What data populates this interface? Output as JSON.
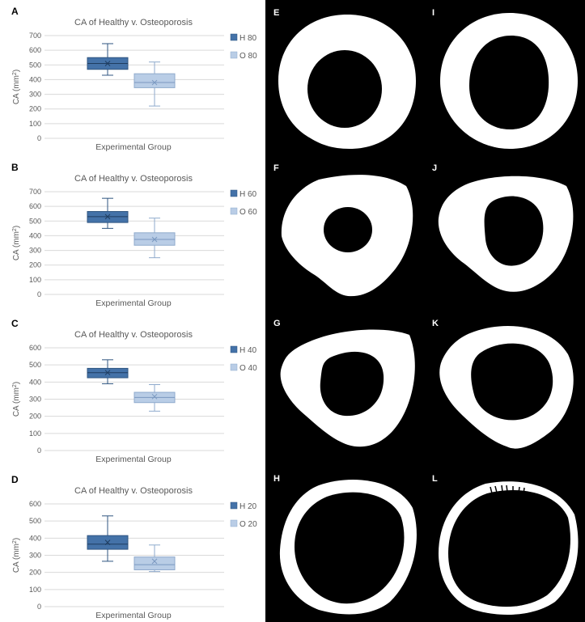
{
  "chart_data": [
    {
      "type": "box",
      "panel_letter": "A",
      "title": "CA of Healthy v. Osteoporosis",
      "xlabel": "Experimental Group",
      "ylabel_main": "CA (mm",
      "ylabel_sup": "2",
      "ylabel_end": ")",
      "ylim": [
        0,
        700
      ],
      "yticks": [
        0,
        100,
        200,
        300,
        400,
        500,
        600,
        700
      ],
      "grid": true,
      "legend_position": "right",
      "series": [
        {
          "name": "H 80",
          "color": "#4472a8",
          "whisker_low": 430,
          "q1": 470,
          "median": 510,
          "mean": 510,
          "q3": 550,
          "whisker_high": 645
        },
        {
          "name": "O 80",
          "color": "#b9cde6",
          "whisker_low": 220,
          "q1": 345,
          "median": 380,
          "mean": 380,
          "q3": 440,
          "whisker_high": 520
        }
      ]
    },
    {
      "type": "box",
      "panel_letter": "B",
      "title": "CA of Healthy v. Osteoporosis",
      "xlabel": "Experimental Group",
      "ylabel_main": "CA (mm",
      "ylabel_sup": "2",
      "ylabel_end": ")",
      "ylim": [
        0,
        700
      ],
      "yticks": [
        0,
        100,
        200,
        300,
        400,
        500,
        600,
        700
      ],
      "grid": true,
      "legend_position": "right",
      "series": [
        {
          "name": "H 60",
          "color": "#4472a8",
          "whisker_low": 450,
          "q1": 490,
          "median": 530,
          "mean": 530,
          "q3": 565,
          "whisker_high": 655
        },
        {
          "name": "O 60",
          "color": "#b9cde6",
          "whisker_low": 250,
          "q1": 335,
          "median": 375,
          "mean": 375,
          "q3": 420,
          "whisker_high": 520
        }
      ]
    },
    {
      "type": "box",
      "panel_letter": "C",
      "title": "CA of Healthy v. Osteoporosis",
      "xlabel": "Experimental Group",
      "ylabel_main": "CA (mm",
      "ylabel_sup": "2",
      "ylabel_end": ")",
      "ylim": [
        0,
        600
      ],
      "yticks": [
        0,
        100,
        200,
        300,
        400,
        500,
        600
      ],
      "grid": true,
      "legend_position": "right",
      "series": [
        {
          "name": "H 40",
          "color": "#4472a8",
          "whisker_low": 390,
          "q1": 425,
          "median": 455,
          "mean": 455,
          "q3": 480,
          "whisker_high": 530
        },
        {
          "name": "O 40",
          "color": "#b9cde6",
          "whisker_low": 230,
          "q1": 280,
          "median": 310,
          "mean": 315,
          "q3": 340,
          "whisker_high": 385
        }
      ]
    },
    {
      "type": "box",
      "panel_letter": "D",
      "title": "CA  of Healthy v. Osteoporosis",
      "xlabel": "Experimental Group",
      "ylabel_main": "CA (mm",
      "ylabel_sup": "2",
      "ylabel_end": ")",
      "ylim": [
        0,
        600
      ],
      "yticks": [
        0,
        100,
        200,
        300,
        400,
        500,
        600
      ],
      "grid": true,
      "legend_position": "right",
      "series": [
        {
          "name": "H 20",
          "color": "#4472a8",
          "whisker_low": 265,
          "q1": 335,
          "median": 365,
          "mean": 375,
          "q3": 415,
          "whisker_high": 530
        },
        {
          "name": "O 20",
          "color": "#b9cde6",
          "whisker_low": 205,
          "q1": 215,
          "median": 245,
          "mean": 265,
          "q3": 290,
          "whisker_high": 360
        }
      ]
    }
  ],
  "bone_panels": {
    "labels": [
      "E",
      "I",
      "F",
      "J",
      "G",
      "K",
      "H",
      "L"
    ],
    "fill_color": "#ffffff",
    "background_color": "#000000"
  }
}
